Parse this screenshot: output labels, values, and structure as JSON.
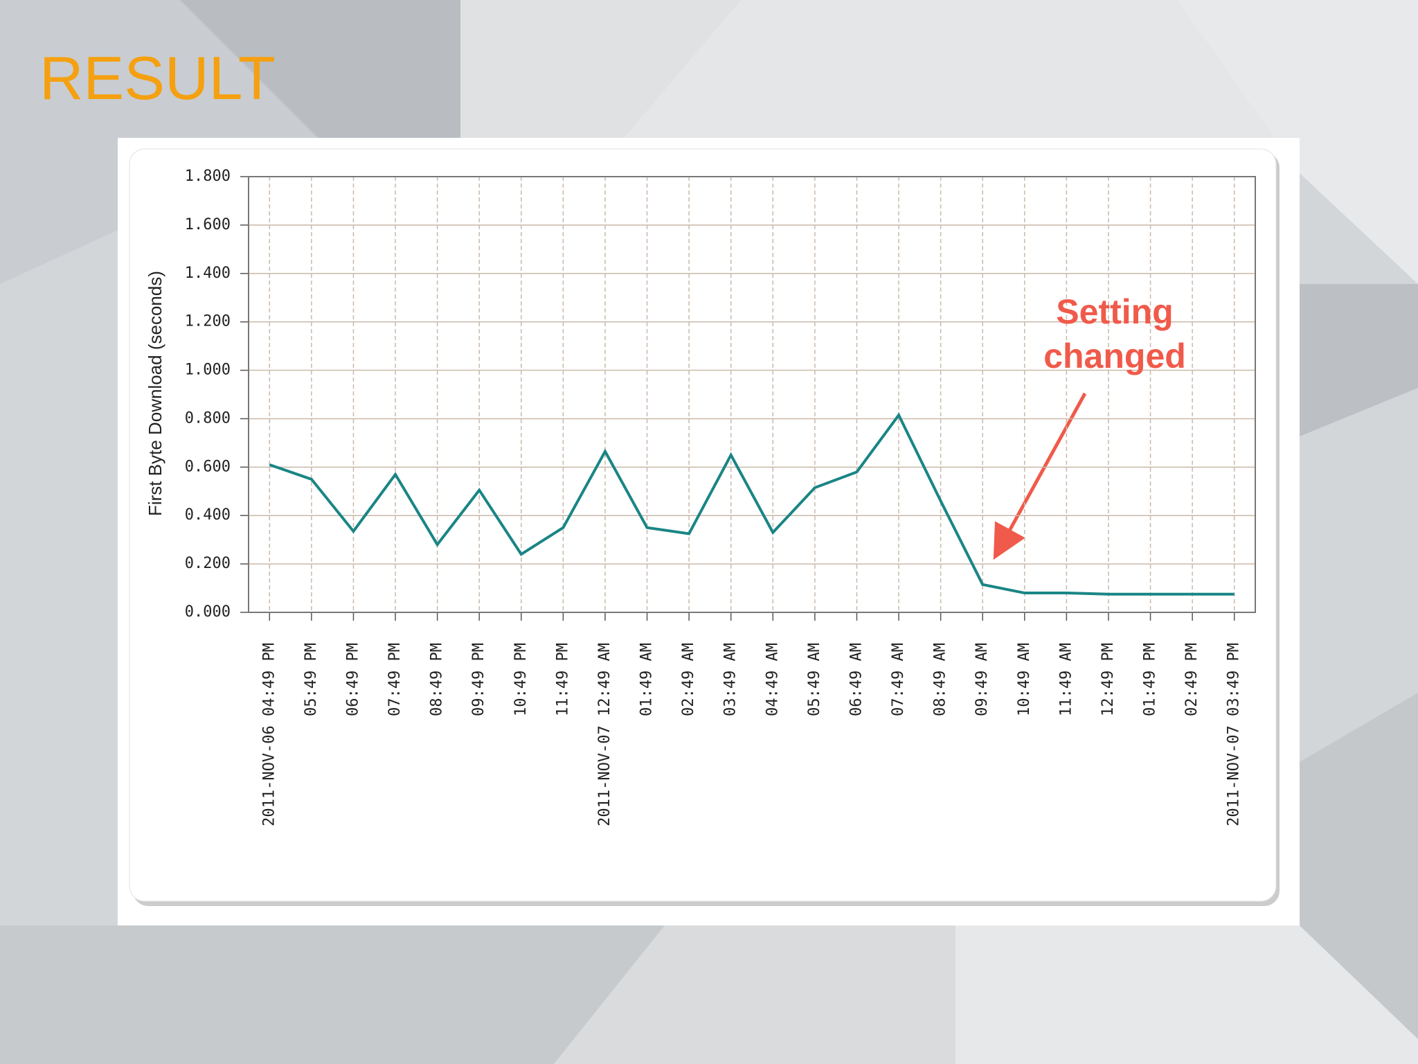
{
  "slide_title": "RESULT",
  "chart_data": {
    "type": "line",
    "y_label": "First Byte Download (seconds)",
    "categories": [
      "2011-NOV-06 04:49 PM",
      "05:49 PM",
      "06:49 PM",
      "07:49 PM",
      "08:49 PM",
      "09:49 PM",
      "10:49 PM",
      "11:49 PM",
      "2011-NOV-07 12:49 AM",
      "01:49 AM",
      "02:49 AM",
      "03:49 AM",
      "04:49 AM",
      "05:49 AM",
      "06:49 AM",
      "07:49 AM",
      "08:49 AM",
      "09:49 AM",
      "10:49 AM",
      "11:49 AM",
      "12:49 PM",
      "01:49 PM",
      "02:49 PM",
      "2011-NOV-07 03:49 PM"
    ],
    "values": [
      0.61,
      0.55,
      0.335,
      0.57,
      0.28,
      0.505,
      0.24,
      0.35,
      0.665,
      0.35,
      0.325,
      0.65,
      0.33,
      0.515,
      0.58,
      0.815,
      0.46,
      0.115,
      0.08,
      0.08,
      0.075,
      0.075,
      0.075,
      0.075
    ],
    "color": "#1a8585",
    "ylim": [
      0,
      1.8
    ],
    "yticks": [
      {
        "value": 0,
        "label": "0.000"
      },
      {
        "value": 0.2,
        "label": "0.200"
      },
      {
        "value": 0.4,
        "label": "0.400"
      },
      {
        "value": 0.6,
        "label": "0.600"
      },
      {
        "value": 0.8,
        "label": "0.800"
      },
      {
        "value": 1.0,
        "label": "1.000"
      },
      {
        "value": 1.2,
        "label": "1.200"
      },
      {
        "value": 1.4,
        "label": "1.400"
      },
      {
        "value": 1.6,
        "label": "1.600"
      },
      {
        "value": 1.8,
        "label": "1.800"
      }
    ],
    "grid": true,
    "annotation": "Setting changed"
  }
}
